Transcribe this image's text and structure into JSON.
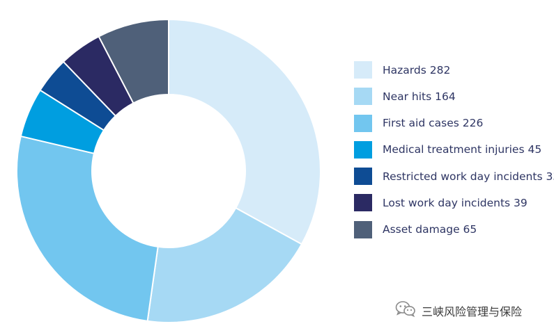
{
  "chart_data": {
    "type": "pie",
    "donut": true,
    "legend_position": "right",
    "slices": [
      {
        "label": "Hazards",
        "value": 282,
        "color": "#d6ebf9"
      },
      {
        "label": "Near hits",
        "value": 164,
        "color": "#a6d9f4"
      },
      {
        "label": "First aid cases",
        "value": 226,
        "color": "#72c6ef"
      },
      {
        "label": "Medical treatment injuries",
        "value": 45,
        "color": "#009ee0"
      },
      {
        "label": "Restricted work day incidents",
        "value": 33,
        "color": "#0e4c94"
      },
      {
        "label": "Lost work day incidents",
        "value": 39,
        "color": "#2b2a63"
      },
      {
        "label": "Asset damage",
        "value": 65,
        "color": "#4f6079"
      }
    ]
  },
  "watermark": {
    "text": "三峡风险管理与保险",
    "icon": "wechat-icon"
  }
}
